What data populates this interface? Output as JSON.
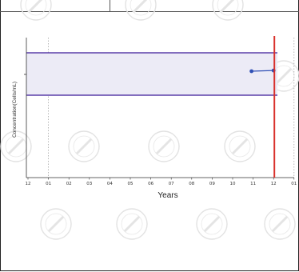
{
  "chart_data": {
    "type": "line",
    "xlabel": "Years",
    "ylabel": "Concentration(Cells/mL)",
    "x_tick_labels": [
      "12",
      "01",
      "02",
      "03",
      "04",
      "05",
      "06",
      "07",
      "08",
      "09",
      "10",
      "11",
      "12",
      "01"
    ],
    "y_tick_labels": [
      ""
    ],
    "reference_band": {
      "color": "#6a4fb0",
      "fill": "#ecebf6"
    },
    "series": [
      {
        "color": "#2f4fb5",
        "points": [
          {
            "x": "11",
            "y_fraction": 0.76
          },
          {
            "x": "12",
            "y_fraction": 0.765
          }
        ]
      }
    ],
    "current_date_marker": {
      "x": "12",
      "color": "#d9302b"
    },
    "grid": "dotted vertical lines at year boundaries (01)",
    "colors": {
      "axis": "#333333",
      "band_border": "#5b3fa8",
      "band_fill": "#ecebf6",
      "series": "#2f4fb5",
      "marker": "#d9302b",
      "watermark": "#e2e2e2"
    }
  }
}
